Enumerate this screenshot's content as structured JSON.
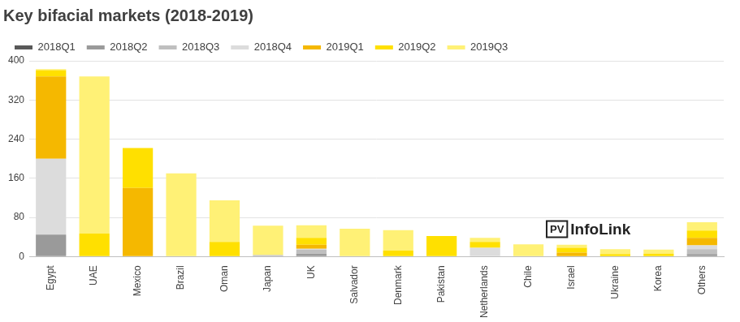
{
  "chart_data": {
    "type": "bar",
    "title": "Key bifacial markets (2018-2019)",
    "categories": [
      "Egypt",
      "UAE",
      "Mexico",
      "Brazil",
      "Oman",
      "Japan",
      "UK",
      "Salvador",
      "Denmark",
      "Pakistan",
      "Netherlands",
      "Chile",
      "Israel",
      "Ukraine",
      "Korea",
      "Others"
    ],
    "series": [
      {
        "name": "2018Q1",
        "color": "#595959",
        "values": [
          0,
          0,
          0,
          0,
          0,
          0,
          0,
          0,
          0,
          0,
          0,
          0,
          0,
          0,
          0,
          0
        ]
      },
      {
        "name": "2018Q2",
        "color": "#9a9a9a",
        "values": [
          45,
          0,
          0,
          0,
          0,
          0,
          6,
          0,
          0,
          0,
          0,
          0,
          0,
          0,
          0,
          5
        ]
      },
      {
        "name": "2018Q3",
        "color": "#bfbfbf",
        "values": [
          0,
          0,
          0,
          0,
          0,
          3,
          8,
          0,
          0,
          0,
          0,
          0,
          0,
          0,
          0,
          10
        ]
      },
      {
        "name": "2018Q4",
        "color": "#dcdcdc",
        "values": [
          155,
          0,
          0,
          0,
          0,
          0,
          2,
          0,
          0,
          0,
          18,
          0,
          0,
          0,
          0,
          8
        ]
      },
      {
        "name": "2019Q1",
        "color": "#f5b800",
        "values": [
          168,
          0,
          140,
          0,
          0,
          0,
          8,
          0,
          0,
          0,
          0,
          0,
          8,
          0,
          0,
          15
        ]
      },
      {
        "name": "2019Q2",
        "color": "#ffe000",
        "values": [
          13,
          47,
          82,
          0,
          30,
          0,
          14,
          0,
          12,
          42,
          12,
          0,
          10,
          5,
          6,
          15
        ]
      },
      {
        "name": "2019Q3",
        "color": "#fff176",
        "values": [
          2,
          321,
          0,
          170,
          85,
          60,
          26,
          57,
          42,
          0,
          8,
          25,
          6,
          10,
          8,
          17
        ]
      }
    ],
    "stacked": true,
    "ylim": [
      0,
      400
    ],
    "yticks": [
      0,
      80,
      160,
      240,
      320,
      400
    ],
    "grid": true,
    "legend": "top-left",
    "watermark": {
      "badge": "PV",
      "text": "InfoLink"
    }
  }
}
